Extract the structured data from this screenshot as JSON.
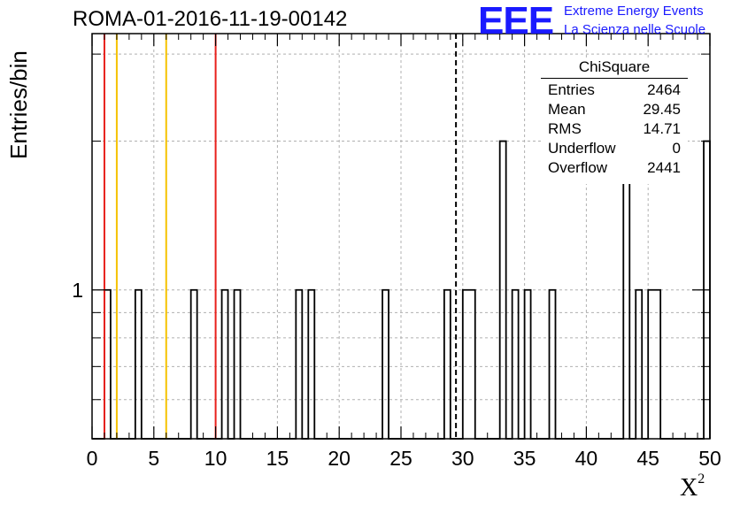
{
  "title": "ROMA-01-2016-11-19-00142",
  "logo": {
    "mark": "EEE",
    "line1": "Extreme Energy Events",
    "line2": "La Scienza nelle Scuole"
  },
  "stats": {
    "name": "ChiSquare",
    "rows": [
      {
        "key": "Entries",
        "value": "2464"
      },
      {
        "key": "Mean",
        "value": "29.45"
      },
      {
        "key": "RMS",
        "value": "14.71"
      },
      {
        "key": "Underflow",
        "value": "0"
      },
      {
        "key": "Overflow",
        "value": "2441"
      }
    ]
  },
  "colors": {
    "red_line": "#e8201c",
    "orange_line": "#f5c200",
    "histogram": "#000000",
    "grid": "#b0b0b0",
    "logo": "#1a1aff"
  },
  "chart_data": {
    "type": "bar",
    "histogram_style": "outline",
    "xlabel": "X",
    "xlabel_superscript": "2",
    "ylabel": "Entries/bin",
    "xlim": [
      0,
      50
    ],
    "y_scale": "log",
    "ylim": [
      0.5,
      3.3
    ],
    "x_ticks": [
      0,
      5,
      10,
      15,
      20,
      25,
      30,
      35,
      40,
      45,
      50
    ],
    "y_tick_labels": [
      {
        "value": 1,
        "label": "1"
      }
    ],
    "bin_width": 0.5,
    "bins": [
      {
        "x": 1.0,
        "count": 1
      },
      {
        "x": 3.5,
        "count": 1
      },
      {
        "x": 8.0,
        "count": 1
      },
      {
        "x": 10.5,
        "count": 1
      },
      {
        "x": 11.5,
        "count": 1
      },
      {
        "x": 16.5,
        "count": 1
      },
      {
        "x": 17.5,
        "count": 1
      },
      {
        "x": 23.5,
        "count": 1
      },
      {
        "x": 28.5,
        "count": 1
      },
      {
        "x": 30.0,
        "count": 1
      },
      {
        "x": 30.5,
        "count": 1
      },
      {
        "x": 33.0,
        "count": 2
      },
      {
        "x": 34.0,
        "count": 1
      },
      {
        "x": 35.0,
        "count": 1
      },
      {
        "x": 37.0,
        "count": 1
      },
      {
        "x": 43.0,
        "count": 2
      },
      {
        "x": 44.0,
        "count": 1
      },
      {
        "x": 45.0,
        "count": 1
      },
      {
        "x": 45.5,
        "count": 1
      },
      {
        "x": 49.5,
        "count": 2
      }
    ],
    "vertical_lines": [
      {
        "x": 1.0,
        "color": "red",
        "style": "solid"
      },
      {
        "x": 2.0,
        "color": "orange",
        "style": "solid"
      },
      {
        "x": 6.0,
        "color": "orange",
        "style": "solid"
      },
      {
        "x": 10.0,
        "color": "red",
        "style": "solid"
      },
      {
        "x": 29.45,
        "color": "black",
        "style": "dashed"
      }
    ],
    "grid": true
  }
}
